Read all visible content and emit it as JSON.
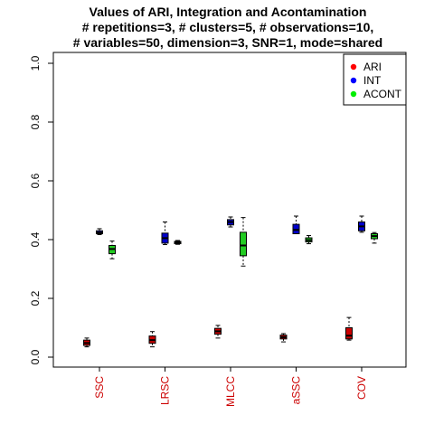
{
  "chart_data": {
    "type": "boxplot",
    "title_lines": [
      "Values of ARI, Integration and Acontamination",
      "# repetitions=3, # clusters=5, # observations=10,",
      "# variables=50, dimension=3, SNR=1, mode=shared"
    ],
    "xlabel": "",
    "ylabel": "",
    "ylim": [
      0,
      1
    ],
    "yticks": [
      0.0,
      0.2,
      0.4,
      0.6,
      0.8,
      1.0
    ],
    "ytick_labels": [
      "0.0",
      "0.2",
      "0.4",
      "0.6",
      "0.8",
      "1.0"
    ],
    "categories": [
      "SSC",
      "LRSC",
      "MLCC",
      "aSSC",
      "COV"
    ],
    "category_label_color": "#cc0000",
    "legend_position": "top-right",
    "series": [
      {
        "name": "ARI",
        "fill_color": "#cc0000",
        "legend_color": "#ff0000",
        "boxes": [
          {
            "min": 0.035,
            "q1": 0.04,
            "median": 0.048,
            "q3": 0.058,
            "max": 0.065
          },
          {
            "min": 0.035,
            "q1": 0.047,
            "median": 0.058,
            "q3": 0.072,
            "max": 0.087
          },
          {
            "min": 0.065,
            "q1": 0.078,
            "median": 0.088,
            "q3": 0.098,
            "max": 0.108
          },
          {
            "min": 0.052,
            "q1": 0.062,
            "median": 0.068,
            "q3": 0.075,
            "max": 0.08
          },
          {
            "min": 0.058,
            "q1": 0.062,
            "median": 0.073,
            "q3": 0.1,
            "max": 0.135
          }
        ]
      },
      {
        "name": "INT",
        "fill_color": "#0000cc",
        "legend_color": "#0000ff",
        "boxes": [
          {
            "min": 0.417,
            "q1": 0.42,
            "median": 0.424,
            "q3": 0.43,
            "max": 0.437
          },
          {
            "min": 0.383,
            "q1": 0.388,
            "median": 0.405,
            "q3": 0.422,
            "max": 0.46
          },
          {
            "min": 0.443,
            "q1": 0.45,
            "median": 0.46,
            "q3": 0.468,
            "max": 0.477
          },
          {
            "min": 0.42,
            "q1": 0.42,
            "median": 0.433,
            "q3": 0.452,
            "max": 0.48
          },
          {
            "min": 0.425,
            "q1": 0.43,
            "median": 0.445,
            "q3": 0.46,
            "max": 0.48
          }
        ]
      },
      {
        "name": "ACONT",
        "fill_color": "#22cc22",
        "legend_color": "#00ee00",
        "boxes": [
          {
            "min": 0.335,
            "q1": 0.352,
            "median": 0.368,
            "q3": 0.38,
            "max": 0.395
          },
          {
            "min": 0.384,
            "q1": 0.386,
            "median": 0.39,
            "q3": 0.394,
            "max": 0.397
          },
          {
            "min": 0.31,
            "q1": 0.345,
            "median": 0.38,
            "q3": 0.425,
            "max": 0.475
          },
          {
            "min": 0.386,
            "q1": 0.392,
            "median": 0.398,
            "q3": 0.406,
            "max": 0.414
          },
          {
            "min": 0.388,
            "q1": 0.403,
            "median": 0.412,
            "q3": 0.42,
            "max": 0.424
          }
        ]
      }
    ]
  }
}
